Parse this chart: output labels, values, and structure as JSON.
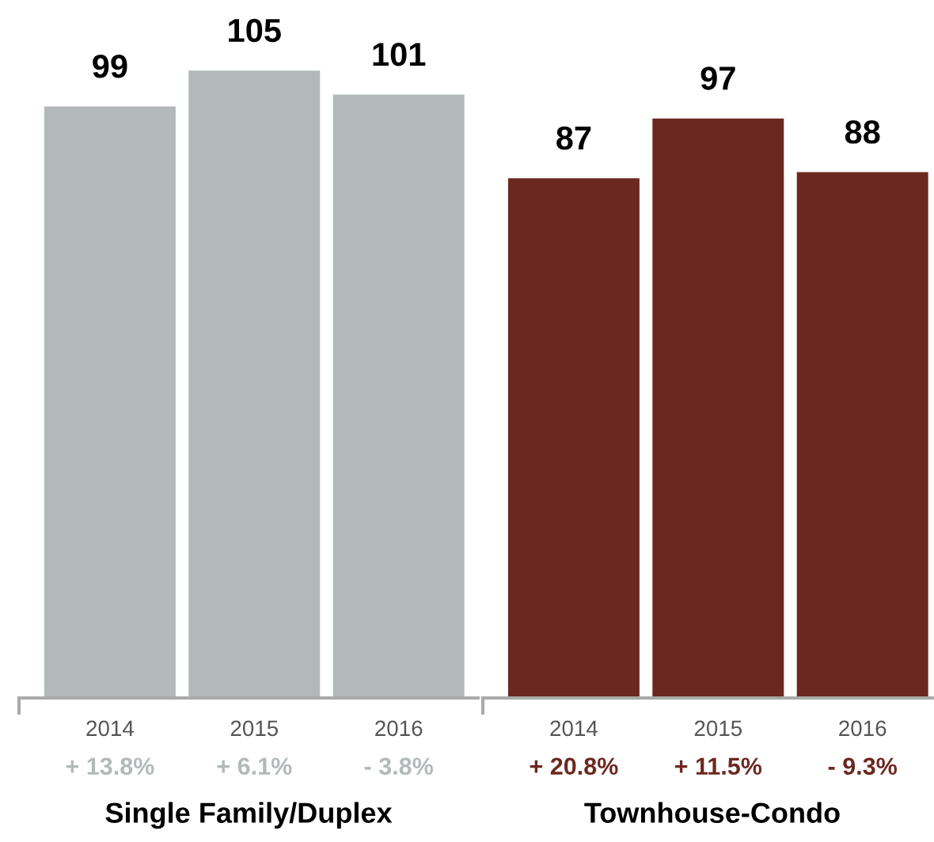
{
  "chart_data": [
    {
      "type": "bar",
      "categories": [
        "2014",
        "2015",
        "2016"
      ],
      "values": [
        99,
        105,
        101
      ],
      "color": "#b3b9b9",
      "xlabel": "Single Family/Duplex",
      "annotations": [
        "+ 13.8%",
        "+ 6.1%",
        "- 3.8%"
      ],
      "data_labels": true,
      "tick_labels": "x",
      "grid": false,
      "legend": false
    },
    {
      "type": "bar",
      "categories": [
        "2014",
        "2015",
        "2016"
      ],
      "values": [
        87,
        97,
        88
      ],
      "color": "#6b2820",
      "xlabel": "Townhouse-Condo",
      "annotations": [
        "+ 20.8%",
        "+ 11.5%",
        "- 9.3%"
      ],
      "data_labels": true,
      "tick_labels": "x",
      "grid": false,
      "legend": false
    }
  ]
}
